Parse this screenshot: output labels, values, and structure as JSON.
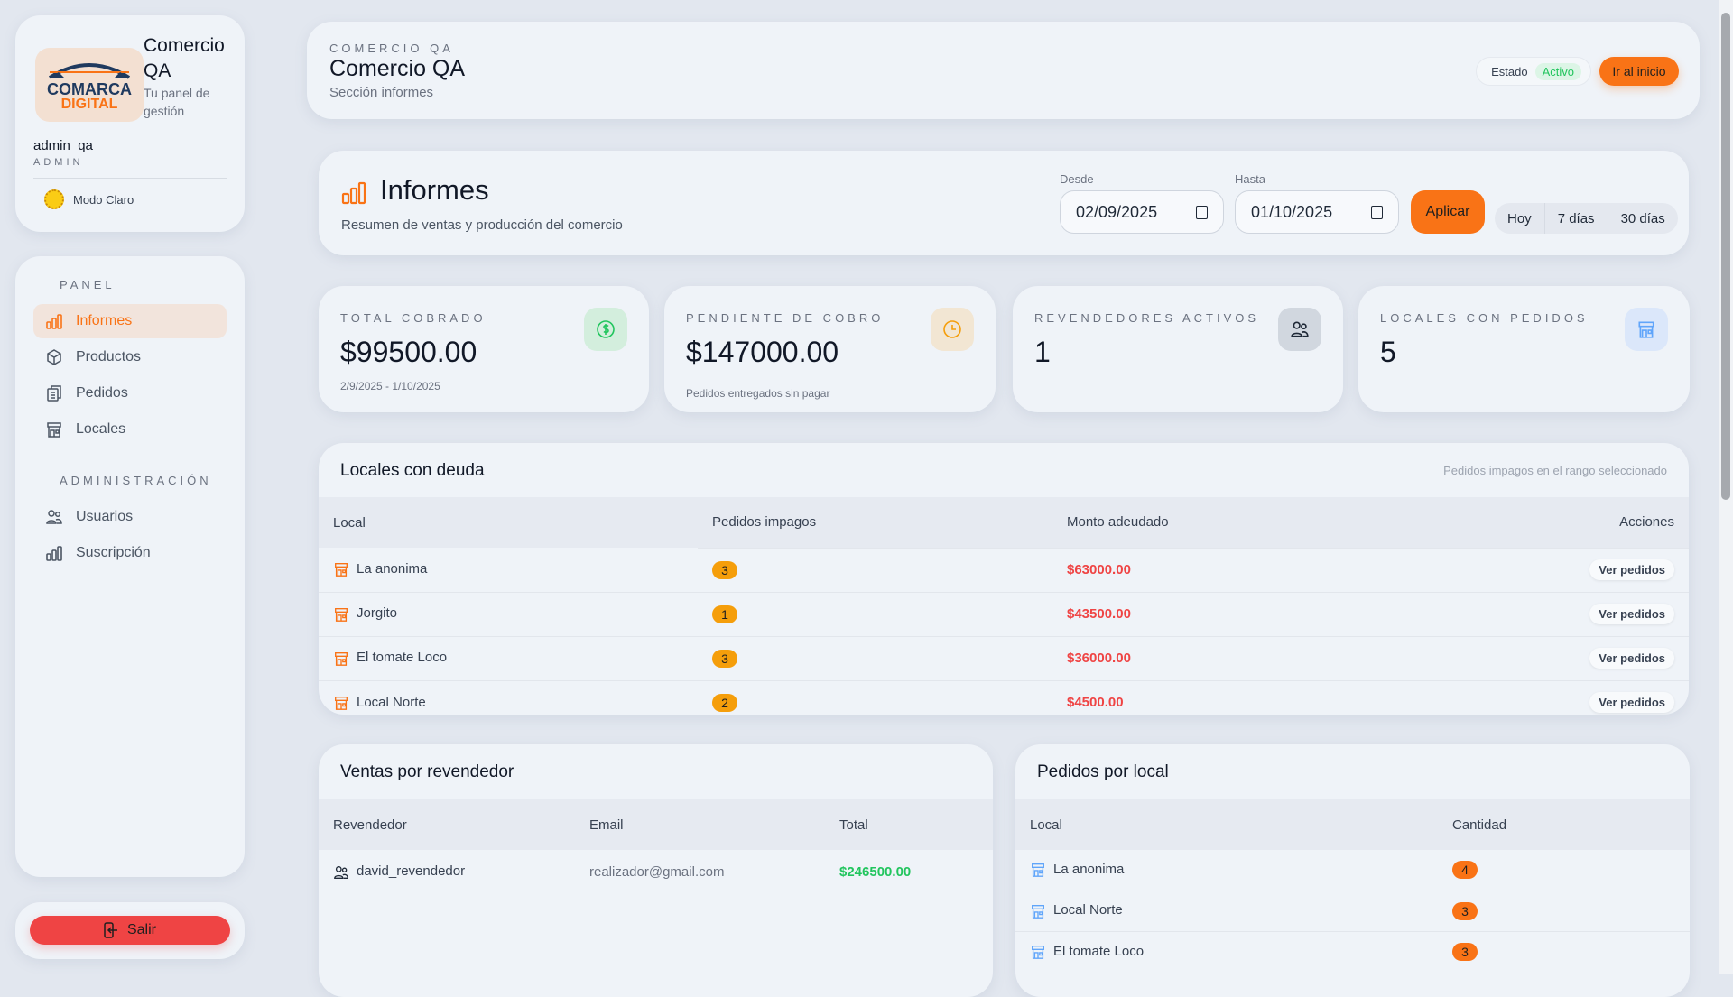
{
  "brand": {
    "logo_text_top": "COMARCA",
    "logo_text_bottom": "DIGITAL",
    "title": "Comercio QA",
    "subtitle": "Tu panel de gestión"
  },
  "user": {
    "name": "admin_qa",
    "role": "ADMIN"
  },
  "theme_toggle": {
    "label": "Modo Claro",
    "icon": "sun-icon"
  },
  "sidebar": {
    "sections": [
      {
        "label": "PANEL",
        "items": [
          {
            "label": "Informes",
            "icon": "bar-chart-icon",
            "active": true
          },
          {
            "label": "Productos",
            "icon": "box-icon"
          },
          {
            "label": "Pedidos",
            "icon": "clipboard-icon"
          },
          {
            "label": "Locales",
            "icon": "store-icon"
          }
        ]
      },
      {
        "label": "ADMINISTRACIÓN",
        "items": [
          {
            "label": "Usuarios",
            "icon": "users-icon"
          },
          {
            "label": "Suscripción",
            "icon": "bar-chart-icon"
          }
        ]
      }
    ],
    "logout_label": "Salir"
  },
  "header": {
    "eyebrow": "COMERCIO QA",
    "title": "Comercio QA",
    "subtitle": "Sección informes",
    "status_label": "Estado",
    "status_value": "Activo",
    "home_button": "Ir al inicio"
  },
  "report": {
    "title": "Informes",
    "subtitle": "Resumen de ventas y producción del comercio",
    "from_label": "Desde",
    "from_value": "02/09/2025",
    "to_label": "Hasta",
    "to_value": "01/10/2025",
    "apply_label": "Aplicar",
    "presets": [
      "Hoy",
      "7 días",
      "30 días"
    ]
  },
  "stats": [
    {
      "label": "TOTAL COBRADO",
      "value": "$99500.00",
      "sub": "2/9/2025 - 1/10/2025",
      "icon": "dollar-icon"
    },
    {
      "label": "PENDIENTE DE COBRO",
      "value": "$147000.00",
      "sub": "Pedidos entregados sin pagar",
      "icon": "clock-icon"
    },
    {
      "label": "REVENDEDORES ACTIVOS",
      "value": "1",
      "sub": "",
      "icon": "users-icon"
    },
    {
      "label": "LOCALES CON PEDIDOS",
      "value": "5",
      "sub": "",
      "icon": "store-icon"
    }
  ],
  "debt": {
    "title": "Locales con deuda",
    "note": "Pedidos impagos en el rango seleccionado",
    "columns": [
      "Local",
      "Pedidos impagos",
      "Monto adeudado",
      "Acciones"
    ],
    "action_label": "Ver pedidos",
    "rows": [
      {
        "local": "La anonima",
        "unpaid": "3",
        "amount": "$63000.00"
      },
      {
        "local": "Jorgito",
        "unpaid": "1",
        "amount": "$43500.00"
      },
      {
        "local": "El tomate Loco",
        "unpaid": "3",
        "amount": "$36000.00"
      },
      {
        "local": "Local Norte",
        "unpaid": "2",
        "amount": "$4500.00"
      }
    ]
  },
  "sales": {
    "title": "Ventas por revendedor",
    "columns": [
      "Revendedor",
      "Email",
      "Total"
    ],
    "rows": [
      {
        "name": "david_revendedor",
        "email": "realizador@gmail.com",
        "total": "$246500.00"
      }
    ]
  },
  "orders": {
    "title": "Pedidos por local",
    "columns": [
      "Local",
      "Cantidad"
    ],
    "rows": [
      {
        "local": "La anonima",
        "count": "4"
      },
      {
        "local": "Local Norte",
        "count": "3"
      },
      {
        "local": "El tomate Loco",
        "count": "3"
      }
    ]
  },
  "colors": {
    "accent": "#f97316",
    "danger": "#ef4444",
    "success": "#22c55e",
    "badge_amber": "#f59e0b"
  }
}
